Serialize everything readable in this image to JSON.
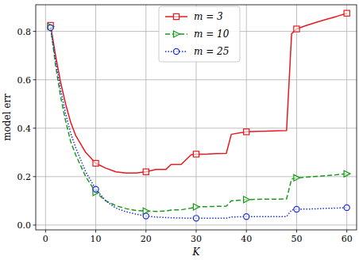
{
  "chart_data": {
    "type": "line",
    "x_label": "K",
    "y_label": "model err",
    "x": [
      1,
      2,
      3,
      4,
      5,
      6,
      8,
      10,
      12,
      14,
      16,
      18,
      20,
      22,
      24,
      25,
      27,
      29,
      30,
      32,
      34,
      36,
      37,
      40,
      42,
      44,
      46,
      48,
      49,
      50,
      52,
      54,
      56,
      58,
      60
    ],
    "series": [
      {
        "name": "m = 3",
        "color": "#e8191c",
        "marker": "square",
        "line_style": "solid",
        "values": [
          0.825,
          0.7,
          0.59,
          0.5,
          0.425,
          0.37,
          0.3,
          0.255,
          0.235,
          0.22,
          0.215,
          0.215,
          0.22,
          0.23,
          0.23,
          0.25,
          0.25,
          0.29,
          0.293,
          0.293,
          0.295,
          0.296,
          0.375,
          0.385,
          0.387,
          0.388,
          0.389,
          0.39,
          0.79,
          0.81,
          0.825,
          0.838,
          0.85,
          0.862,
          0.875
        ]
      },
      {
        "name": "m = 10",
        "color": "#1a9a1a",
        "marker": "triangle-right",
        "line_style": "dashed",
        "values": [
          0.82,
          0.66,
          0.53,
          0.43,
          0.345,
          0.29,
          0.2,
          0.135,
          0.1,
          0.08,
          0.068,
          0.06,
          0.058,
          0.056,
          0.058,
          0.062,
          0.063,
          0.07,
          0.075,
          0.076,
          0.077,
          0.078,
          0.1,
          0.105,
          0.106,
          0.107,
          0.107,
          0.108,
          0.19,
          0.195,
          0.198,
          0.201,
          0.204,
          0.208,
          0.212
        ]
      },
      {
        "name": "m = 25",
        "color": "#1f2fd6",
        "marker": "circle",
        "line_style": "dotted",
        "values": [
          0.815,
          0.68,
          0.56,
          0.46,
          0.38,
          0.32,
          0.22,
          0.148,
          0.1,
          0.07,
          0.055,
          0.045,
          0.037,
          0.033,
          0.031,
          0.03,
          0.029,
          0.028,
          0.028,
          0.028,
          0.028,
          0.028,
          0.033,
          0.035,
          0.035,
          0.035,
          0.035,
          0.035,
          0.062,
          0.065,
          0.066,
          0.067,
          0.069,
          0.07,
          0.072
        ]
      }
    ],
    "xlim": [
      -1.95,
      61.95
    ],
    "ylim": [
      -0.02,
      0.91
    ],
    "xticks": [
      0,
      10,
      20,
      30,
      40,
      50,
      60
    ],
    "yticks": [
      {
        "value": 0,
        "label": "0.0"
      },
      {
        "value": 0.2,
        "label": "0.2"
      },
      {
        "value": 0.4,
        "label": "0.4"
      },
      {
        "value": 0.6,
        "label": "0.6"
      },
      {
        "value": 0.8,
        "label": "0.8"
      }
    ],
    "grid": true,
    "legend": "upper center"
  }
}
